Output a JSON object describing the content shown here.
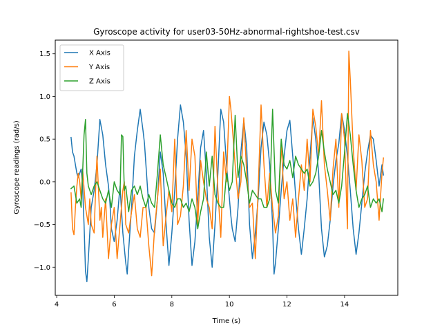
{
  "chart_data": {
    "type": "line",
    "title": "Gyroscope activity for user03-50Hz-abnormal-rightshoe-test.csv",
    "xlabel": "Time (s)",
    "ylabel": "Gyroscope readings (rad/s)",
    "xlim": [
      3.95,
      15.85
    ],
    "ylim": [
      -1.33,
      1.66
    ],
    "xticks": [
      4,
      6,
      8,
      10,
      12,
      14
    ],
    "yticks": [
      -1.0,
      -0.5,
      0.0,
      0.5,
      1.0,
      1.5
    ],
    "xtick_labels": [
      "4",
      "6",
      "8",
      "10",
      "12",
      "14"
    ],
    "ytick_labels": [
      "−1.0",
      "−0.5",
      "0.0",
      "0.5",
      "1.0",
      "1.5"
    ],
    "grid": false,
    "legend_position": "upper-left",
    "series": [
      {
        "name": "X Axis",
        "color": "#1f77b4",
        "x": [
          4.5,
          4.55,
          4.6,
          4.65,
          4.7,
          4.75,
          4.8,
          4.85,
          4.9,
          4.95,
          5.0,
          5.05,
          5.1,
          5.15,
          5.2,
          5.3,
          5.4,
          5.5,
          5.6,
          5.7,
          5.8,
          5.85,
          5.9,
          6.0,
          6.1,
          6.2,
          6.3,
          6.4,
          6.45,
          6.5,
          6.6,
          6.7,
          6.8,
          6.9,
          7.0,
          7.05,
          7.1,
          7.2,
          7.3,
          7.4,
          7.5,
          7.6,
          7.7,
          7.8,
          7.9,
          8.0,
          8.1,
          8.2,
          8.3,
          8.35,
          8.4,
          8.5,
          8.6,
          8.7,
          8.8,
          8.9,
          9.0,
          9.05,
          9.1,
          9.2,
          9.3,
          9.4,
          9.5,
          9.6,
          9.7,
          9.8,
          9.9,
          10.0,
          10.05,
          10.1,
          10.2,
          10.3,
          10.4,
          10.5,
          10.6,
          10.7,
          10.8,
          10.9,
          11.0,
          11.1,
          11.2,
          11.3,
          11.4,
          11.5,
          11.55,
          11.6,
          11.7,
          11.8,
          11.9,
          12.0,
          12.1,
          12.2,
          12.3,
          12.4,
          12.5,
          12.6,
          12.7,
          12.8,
          12.9,
          13.0,
          13.1,
          13.2,
          13.3,
          13.4,
          13.5,
          13.6,
          13.7,
          13.8,
          13.9,
          14.0,
          14.1,
          14.2,
          14.3,
          14.4,
          14.5,
          14.6,
          14.7,
          14.8,
          14.9,
          15.0,
          15.1,
          15.2,
          15.3,
          15.35
        ],
        "y": [
          0.52,
          0.35,
          0.3,
          0.2,
          0.1,
          0.05,
          0.1,
          0.15,
          -0.05,
          -0.5,
          -1.05,
          -1.17,
          -0.9,
          -0.6,
          -0.3,
          -0.1,
          0.2,
          0.73,
          0.55,
          0.2,
          -0.05,
          -0.25,
          -0.55,
          -0.7,
          -0.45,
          -0.05,
          -0.6,
          -0.95,
          -1.08,
          -0.8,
          -0.3,
          0.3,
          0.6,
          0.85,
          0.6,
          0.45,
          0.2,
          -0.3,
          -0.55,
          -0.6,
          -0.2,
          0.35,
          0.1,
          -0.5,
          -0.98,
          -0.6,
          -0.1,
          0.5,
          0.9,
          0.8,
          0.7,
          0.3,
          -0.45,
          -0.98,
          -0.7,
          -0.2,
          0.4,
          0.5,
          0.6,
          0.1,
          -0.65,
          -1.0,
          -0.5,
          0.1,
          0.85,
          0.7,
          0.2,
          -0.2,
          -0.4,
          -0.55,
          -0.7,
          -0.3,
          0.35,
          0.72,
          0.4,
          -0.5,
          -0.9,
          -0.6,
          -0.2,
          0.4,
          0.7,
          0.55,
          0.2,
          -0.5,
          -1.08,
          -0.95,
          -0.55,
          -0.1,
          0.3,
          0.6,
          0.72,
          0.3,
          -0.15,
          -0.55,
          -0.85,
          -0.55,
          -0.2,
          0.3,
          0.75,
          0.5,
          0.1,
          -0.55,
          -0.88,
          -0.75,
          -0.45,
          -0.05,
          0.25,
          0.45,
          0.8,
          0.6,
          0.3,
          -0.1,
          -0.55,
          -0.85,
          -0.6,
          -0.25,
          0.1,
          0.35,
          0.55,
          0.5,
          0.25,
          -0.05,
          0.2,
          0.08
        ]
      },
      {
        "name": "Y Axis",
        "color": "#ff7f0e",
        "x": [
          4.5,
          4.55,
          4.6,
          4.65,
          4.7,
          4.75,
          4.8,
          4.85,
          4.9,
          5.0,
          5.1,
          5.15,
          5.2,
          5.3,
          5.35,
          5.4,
          5.5,
          5.55,
          5.6,
          5.7,
          5.8,
          5.9,
          6.0,
          6.1,
          6.2,
          6.3,
          6.35,
          6.4,
          6.5,
          6.6,
          6.7,
          6.8,
          6.9,
          7.0,
          7.1,
          7.2,
          7.3,
          7.4,
          7.5,
          7.6,
          7.7,
          7.8,
          7.9,
          8.0,
          8.1,
          8.2,
          8.3,
          8.4,
          8.5,
          8.6,
          8.7,
          8.8,
          8.9,
          9.0,
          9.1,
          9.2,
          9.3,
          9.4,
          9.5,
          9.6,
          9.7,
          9.8,
          9.9,
          10.0,
          10.05,
          10.1,
          10.2,
          10.3,
          10.4,
          10.5,
          10.6,
          10.7,
          10.8,
          10.9,
          11.0,
          11.1,
          11.2,
          11.3,
          11.4,
          11.5,
          11.6,
          11.7,
          11.8,
          11.9,
          12.0,
          12.1,
          12.2,
          12.3,
          12.4,
          12.5,
          12.6,
          12.7,
          12.8,
          12.9,
          13.0,
          13.1,
          13.2,
          13.3,
          13.4,
          13.5,
          13.6,
          13.7,
          13.8,
          13.9,
          14.0,
          14.1,
          14.15,
          14.2,
          14.3,
          14.4,
          14.5,
          14.6,
          14.7,
          14.8,
          14.9,
          15.0,
          15.1,
          15.2,
          15.3,
          15.35
        ],
        "y": [
          -0.13,
          -0.55,
          -0.62,
          -0.3,
          -0.05,
          0.1,
          0.0,
          -0.2,
          0.15,
          -0.3,
          -0.5,
          -0.2,
          -0.5,
          -0.6,
          -0.1,
          0.3,
          -0.45,
          -0.3,
          -0.65,
          -0.2,
          -0.9,
          -0.5,
          -0.3,
          -0.9,
          -0.5,
          -0.1,
          0.0,
          -0.5,
          -0.6,
          -0.35,
          -0.15,
          -0.55,
          -0.65,
          -0.3,
          -0.3,
          -0.75,
          -1.1,
          -0.55,
          -0.2,
          0.15,
          -0.75,
          -0.4,
          -0.1,
          -0.35,
          0.5,
          -0.5,
          -0.4,
          -0.05,
          0.6,
          -0.1,
          0.5,
          0.3,
          -0.5,
          0.25,
          0.0,
          -0.2,
          -0.3,
          -0.55,
          0.65,
          -0.1,
          -0.65,
          0.35,
          0.0,
          1.0,
          0.85,
          0.65,
          0.2,
          -0.2,
          0.0,
          0.75,
          0.1,
          -0.3,
          -0.25,
          -0.9,
          -0.1,
          0.9,
          0.2,
          -0.3,
          0.1,
          -0.3,
          -0.6,
          -0.4,
          0.45,
          -0.2,
          0.0,
          -0.45,
          -0.2,
          -0.65,
          -0.2,
          0.2,
          -0.1,
          0.5,
          0.0,
          0.85,
          0.65,
          0.3,
          0.95,
          0.2,
          -0.1,
          -0.45,
          0.15,
          0.5,
          -0.3,
          0.8,
          0.5,
          -0.55,
          1.53,
          1.2,
          0.4,
          -0.1,
          0.55,
          0.25,
          -0.3,
          -0.2,
          0.6,
          0.2,
          0.0,
          -0.45,
          0.1,
          0.28
        ]
      },
      {
        "name": "Z Axis",
        "color": "#2ca02c",
        "x": [
          4.5,
          4.6,
          4.7,
          4.8,
          4.85,
          4.9,
          4.95,
          5.0,
          5.05,
          5.1,
          5.2,
          5.3,
          5.4,
          5.5,
          5.6,
          5.7,
          5.8,
          5.9,
          6.0,
          6.1,
          6.2,
          6.25,
          6.3,
          6.35,
          6.4,
          6.5,
          6.6,
          6.7,
          6.8,
          6.9,
          7.0,
          7.1,
          7.2,
          7.3,
          7.4,
          7.5,
          7.6,
          7.7,
          7.8,
          7.9,
          8.0,
          8.1,
          8.2,
          8.3,
          8.4,
          8.5,
          8.6,
          8.7,
          8.8,
          8.9,
          9.0,
          9.1,
          9.2,
          9.3,
          9.4,
          9.5,
          9.6,
          9.7,
          9.8,
          9.9,
          10.0,
          10.1,
          10.2,
          10.3,
          10.4,
          10.5,
          10.6,
          10.7,
          10.8,
          10.9,
          11.0,
          11.1,
          11.2,
          11.3,
          11.4,
          11.5,
          11.6,
          11.7,
          11.8,
          11.9,
          12.0,
          12.1,
          12.2,
          12.3,
          12.4,
          12.5,
          12.6,
          12.7,
          12.8,
          12.9,
          13.0,
          13.1,
          13.2,
          13.3,
          13.4,
          13.5,
          13.6,
          13.7,
          13.8,
          13.9,
          14.0,
          14.1,
          14.2,
          14.3,
          14.4,
          14.5,
          14.6,
          14.7,
          14.8,
          14.9,
          15.0,
          15.1,
          15.2,
          15.3,
          15.35
        ],
        "y": [
          -0.08,
          -0.05,
          -0.25,
          -0.2,
          -0.3,
          0.1,
          0.55,
          0.73,
          0.1,
          -0.05,
          -0.15,
          -0.05,
          0.0,
          -0.1,
          -0.2,
          -0.25,
          -0.1,
          -0.3,
          0.0,
          -0.1,
          -0.15,
          0.55,
          0.53,
          -0.1,
          -0.05,
          -0.35,
          -0.1,
          -0.05,
          -0.15,
          -0.05,
          -0.2,
          -0.3,
          -0.15,
          -0.25,
          -0.3,
          0.1,
          0.55,
          0.2,
          0.05,
          -0.1,
          -0.25,
          -0.3,
          -0.2,
          -0.2,
          -0.3,
          -0.25,
          -0.35,
          -0.2,
          -0.3,
          -0.55,
          -0.35,
          -0.2,
          0.35,
          -0.05,
          0.3,
          -0.15,
          -0.25,
          -0.3,
          -0.3,
          0.1,
          -0.1,
          0.0,
          0.78,
          0.05,
          0.3,
          0.2,
          0.0,
          -0.25,
          -0.1,
          -0.15,
          -0.2,
          -0.2,
          -0.3,
          -0.3,
          -0.2,
          0.85,
          -0.1,
          -0.25,
          0.5,
          0.2,
          0.15,
          0.25,
          0.05,
          0.3,
          0.2,
          0.15,
          0.1,
          0.15,
          -0.05,
          0.0,
          0.1,
          0.3,
          0.6,
          0.35,
          0.15,
          0.0,
          -0.15,
          -0.1,
          -0.25,
          -0.05,
          0.35,
          0.8,
          0.55,
          0.2,
          -0.1,
          -0.3,
          -0.2,
          -0.15,
          -0.05,
          -0.3,
          -0.2,
          -0.25,
          -0.2,
          -0.35,
          -0.2
        ]
      }
    ]
  }
}
